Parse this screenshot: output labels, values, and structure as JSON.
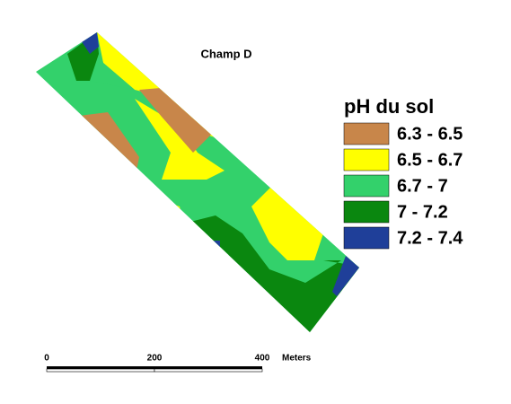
{
  "title": "Champ D",
  "legend": {
    "title": "pH du sol",
    "items": [
      {
        "label": "6.3 - 6.5",
        "color": "#c8864a"
      },
      {
        "label": "6.5 - 6.7",
        "color": "#ffff00"
      },
      {
        "label": "6.7 - 7",
        "color": "#33d16b"
      },
      {
        "label": "7 - 7.2",
        "color": "#0a870f"
      },
      {
        "label": "7.2 - 7.4",
        "color": "#1f3f99"
      }
    ]
  },
  "scale_bar": {
    "ticks": [
      0,
      200,
      400
    ],
    "unit": "Meters"
  }
}
